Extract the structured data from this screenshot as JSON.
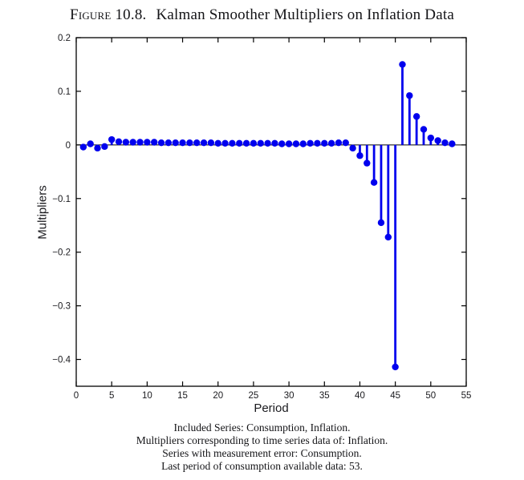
{
  "figure": {
    "title_label": "Figure",
    "title_number": "10.8.",
    "title_text": "Kalman Smoother Multipliers on Inflation Data"
  },
  "caption": {
    "lines": [
      "Included Series: Consumption, Inflation.",
      "Multipliers corresponding to time series data of: Inflation.",
      "Series with measurement error: Consumption.",
      "Last period of consumption available data: 53."
    ]
  },
  "chart_data": {
    "type": "stem",
    "title": "",
    "xlabel": "Period",
    "ylabel": "Multipliers",
    "xlim": [
      0,
      55
    ],
    "ylim": [
      -0.45,
      0.2
    ],
    "grid": false,
    "legend": "none",
    "baseline": 0,
    "stem_color": "#0000EE",
    "axis_color": "#000000",
    "x_tick_labels": [
      "0",
      "5",
      "10",
      "15",
      "20",
      "25",
      "30",
      "35",
      "40",
      "45",
      "50",
      "55"
    ],
    "x_ticks": [
      0,
      5,
      10,
      15,
      20,
      25,
      30,
      35,
      40,
      45,
      50,
      55
    ],
    "y_tick_labels": [
      "0.2",
      "0.1",
      "0",
      "−0.1",
      "−0.2",
      "−0.3",
      "−0.4"
    ],
    "y_ticks": [
      0.2,
      0.1,
      0,
      -0.1,
      -0.2,
      -0.3,
      -0.4
    ],
    "x": [
      1,
      2,
      3,
      4,
      5,
      6,
      7,
      8,
      9,
      10,
      11,
      12,
      13,
      14,
      15,
      16,
      17,
      18,
      19,
      20,
      21,
      22,
      23,
      24,
      25,
      26,
      27,
      28,
      29,
      30,
      31,
      32,
      33,
      34,
      35,
      36,
      37,
      38,
      39,
      40,
      41,
      42,
      43,
      44,
      45,
      46,
      47,
      48,
      49,
      50,
      51,
      52,
      53
    ],
    "y": [
      -0.004,
      0.002,
      -0.006,
      -0.003,
      0.01,
      0.006,
      0.005,
      0.005,
      0.005,
      0.005,
      0.005,
      0.004,
      0.004,
      0.004,
      0.004,
      0.004,
      0.004,
      0.004,
      0.004,
      0.003,
      0.003,
      0.003,
      0.003,
      0.003,
      0.003,
      0.003,
      0.003,
      0.003,
      0.002,
      0.002,
      0.002,
      0.002,
      0.003,
      0.003,
      0.003,
      0.003,
      0.004,
      0.004,
      -0.006,
      -0.02,
      -0.034,
      -0.07,
      -0.145,
      -0.172,
      -0.414,
      0.15,
      0.092,
      0.053,
      0.029,
      0.013,
      0.008,
      0.004,
      0.002
    ]
  }
}
